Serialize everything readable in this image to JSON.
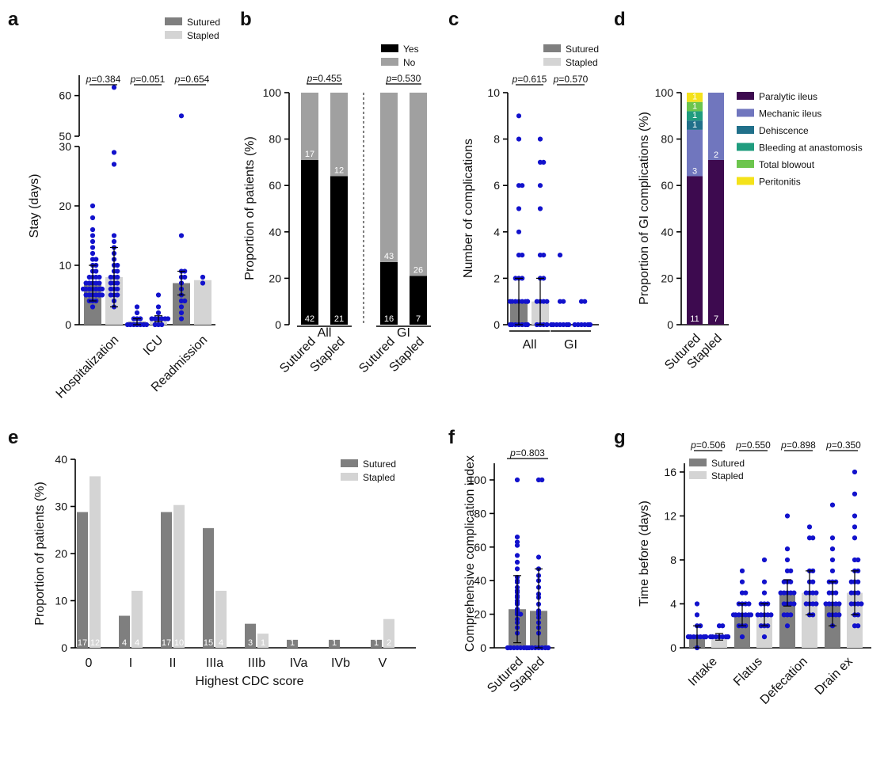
{
  "colors": {
    "sutured": "#7f7f7f",
    "stapled": "#d4d4d4",
    "points": "#1212cc",
    "yes": "#000000",
    "no": "#a0a0a0",
    "paralytic_ileus": "#3d0a4f",
    "mechanic_ileus": "#7076be",
    "dehiscence": "#21708a",
    "bleeding_at_anastomosis": "#1f9c7e",
    "total_blowout": "#6cc54d",
    "peritonitis": "#f4e21a"
  },
  "chart_data": [
    {
      "panel": "a",
      "type": "bar",
      "ylabel": "Stay (days)",
      "yticks_lower": [
        "0",
        "10",
        "20",
        "30"
      ],
      "yticks_upper": [
        "50",
        "60"
      ],
      "ylim_lower": [
        0,
        30
      ],
      "ylim_upper": [
        50,
        65
      ],
      "legend": [
        "Sutured",
        "Stapled"
      ],
      "groups": [
        {
          "name": "Hospitalization",
          "p": "0.384",
          "bars": [
            {
              "series": "Sutured",
              "value": 7,
              "sd": 3,
              "points": [
                3,
                4,
                4,
                4,
                5,
                5,
                5,
                5,
                5,
                5,
                6,
                6,
                6,
                6,
                6,
                6,
                6,
                7,
                7,
                7,
                7,
                7,
                8,
                8,
                8,
                8,
                9,
                9,
                10,
                10,
                11,
                11,
                12,
                13,
                14,
                15,
                16,
                18,
                20
              ]
            },
            {
              "series": "Stapled",
              "value": 8,
              "sd": 5,
              "points": [
                3,
                4,
                5,
                5,
                5,
                6,
                6,
                6,
                7,
                7,
                7,
                8,
                8,
                8,
                9,
                9,
                10,
                10,
                11,
                12,
                13,
                14,
                15,
                27,
                29,
                62
              ]
            }
          ]
        },
        {
          "name": "ICU",
          "p": "0.051",
          "bars": [
            {
              "series": "Sutured",
              "value": 0.5,
              "sd": 0.5,
              "points": [
                0,
                0,
                0,
                0,
                0,
                0,
                0,
                1,
                1,
                1,
                2,
                3
              ]
            },
            {
              "series": "Stapled",
              "value": 1,
              "sd": 0.5,
              "points": [
                0,
                0,
                0,
                1,
                1,
                1,
                1,
                1,
                1,
                2,
                3,
                5
              ]
            }
          ]
        },
        {
          "name": "Readmission",
          "p": "0.654",
          "bars": [
            {
              "series": "Sutured",
              "value": 7,
              "sd": 2,
              "points": [
                1,
                2,
                3,
                4,
                4,
                5,
                6,
                7,
                8,
                8,
                9,
                9,
                15,
                55
              ]
            },
            {
              "series": "Stapled",
              "value": 7.5,
              "sd": 0,
              "points": [
                7,
                8
              ]
            }
          ]
        }
      ]
    },
    {
      "panel": "b",
      "type": "bar",
      "stacked": true,
      "ylabel": "Proportion of patients (%)",
      "yticks": [
        "0",
        "20",
        "40",
        "60",
        "80",
        "100"
      ],
      "ylim": [
        0,
        100
      ],
      "legend": [
        "Yes",
        "No"
      ],
      "groups": [
        {
          "name": "All",
          "p": "0.455",
          "bars": [
            {
              "label": "Sutured",
              "yes": 71,
              "no": 29,
              "yes_count": "42",
              "no_count": "17"
            },
            {
              "label": "Stapled",
              "yes": 64,
              "no": 36,
              "yes_count": "21",
              "no_count": "12"
            }
          ]
        },
        {
          "name": "GI",
          "p": "0.530",
          "bars": [
            {
              "label": "Sutured",
              "yes": 27,
              "no": 73,
              "yes_count": "16",
              "no_count": "43"
            },
            {
              "label": "Stapled",
              "yes": 21,
              "no": 79,
              "yes_count": "7",
              "no_count": "26"
            }
          ]
        }
      ]
    },
    {
      "panel": "c",
      "type": "bar",
      "ylabel": "Number of complications",
      "yticks": [
        "0",
        "2",
        "4",
        "6",
        "8",
        "10"
      ],
      "ylim": [
        0,
        10
      ],
      "legend": [
        "Sutured",
        "Stapled"
      ],
      "groups": [
        {
          "name": "All",
          "p": "0.615",
          "bars": [
            {
              "series": "Sutured",
              "value": 1,
              "sd": 1,
              "points": [
                0,
                0,
                0,
                0,
                0,
                0,
                0,
                1,
                1,
                1,
                1,
                1,
                1,
                1,
                1,
                2,
                2,
                2,
                3,
                3,
                4,
                5,
                6,
                6,
                8,
                9
              ]
            },
            {
              "series": "Stapled",
              "value": 1,
              "sd": 1,
              "points": [
                0,
                0,
                0,
                0,
                1,
                1,
                1,
                1,
                2,
                2,
                3,
                3,
                5,
                6,
                7,
                7,
                8
              ]
            }
          ]
        },
        {
          "name": "GI",
          "p": "0.570",
          "bars": [
            {
              "series": "Sutured",
              "value": 0,
              "sd": 0,
              "points": [
                0,
                0,
                0,
                0,
                0,
                0,
                0,
                1,
                1,
                3
              ]
            },
            {
              "series": "Stapled",
              "value": 0,
              "sd": 0,
              "points": [
                0,
                0,
                0,
                0,
                0,
                0,
                1,
                1
              ]
            }
          ]
        }
      ]
    },
    {
      "panel": "d",
      "type": "bar",
      "stacked": true,
      "ylabel": "Proportion of GI complications (%)",
      "yticks": [
        "0",
        "20",
        "40",
        "60",
        "80",
        "100"
      ],
      "ylim": [
        0,
        100
      ],
      "categories": [
        "Sutured",
        "Stapled"
      ],
      "legend": [
        "Paralytic ileus",
        "Mechanic ileus",
        "Dehiscence",
        "Bleeding at anastomosis",
        "Total blowout",
        "Peritonitis"
      ],
      "series": [
        {
          "name": "Paralytic ileus",
          "values": [
            64,
            71
          ],
          "counts": [
            "11",
            "7"
          ]
        },
        {
          "name": "Mechanic ileus",
          "values": [
            20,
            29
          ],
          "counts": [
            "3",
            "2"
          ]
        },
        {
          "name": "Dehiscence",
          "values": [
            4,
            0
          ],
          "counts": [
            "1",
            ""
          ]
        },
        {
          "name": "Bleeding at anastomosis",
          "values": [
            4,
            0
          ],
          "counts": [
            "1",
            ""
          ]
        },
        {
          "name": "Total blowout",
          "values": [
            4,
            0
          ],
          "counts": [
            "1",
            ""
          ]
        },
        {
          "name": "Peritonitis",
          "values": [
            4,
            0
          ],
          "counts": [
            "1",
            ""
          ]
        }
      ]
    },
    {
      "panel": "e",
      "type": "bar",
      "xlabel": "Highest CDC score",
      "ylabel": "Proportion of patients (%)",
      "yticks": [
        "0",
        "10",
        "20",
        "30",
        "40"
      ],
      "ylim": [
        0,
        40
      ],
      "categories": [
        "0",
        "I",
        "II",
        "IIIa",
        "IIIb",
        "IVa",
        "IVb",
        "V"
      ],
      "series": [
        {
          "name": "Sutured",
          "values": [
            28.8,
            6.8,
            28.8,
            25.4,
            5.1,
            1.7,
            1.7,
            1.7
          ],
          "counts": [
            "17",
            "4",
            "17",
            "15",
            "3",
            "1",
            "1",
            "1"
          ]
        },
        {
          "name": "Stapled",
          "values": [
            36.4,
            12.1,
            30.3,
            12.1,
            3.0,
            0,
            0,
            6.1
          ],
          "counts": [
            "12",
            "4",
            "10",
            "4",
            "1",
            "",
            "",
            "2"
          ]
        }
      ]
    },
    {
      "panel": "f",
      "type": "bar",
      "ylabel": "Comprehensive complication index",
      "yticks": [
        "0",
        "20",
        "40",
        "60",
        "80",
        "100"
      ],
      "ylim": [
        0,
        100
      ],
      "p": "0.803",
      "bars": [
        {
          "label": "Sutured",
          "value": 23,
          "sd": 20,
          "points": [
            0,
            0,
            0,
            0,
            0,
            0,
            0,
            0,
            0,
            0,
            8.7,
            12,
            15,
            17,
            20,
            20,
            21,
            22,
            23,
            26,
            27,
            28,
            30,
            31,
            33,
            34,
            36,
            39,
            40,
            42,
            47,
            51,
            55,
            61,
            63,
            66,
            100
          ]
        },
        {
          "label": "Stapled",
          "value": 22,
          "sd": 25,
          "points": [
            0,
            0,
            0,
            0,
            0,
            0,
            0,
            0,
            8.7,
            12,
            15,
            18,
            20,
            21,
            22,
            26,
            30,
            32,
            36,
            40,
            43,
            47,
            54,
            100,
            100
          ]
        }
      ]
    },
    {
      "panel": "g",
      "type": "bar",
      "ylabel": "Time before (days)",
      "yticks": [
        "0",
        "4",
        "8",
        "12",
        "16"
      ],
      "ylim": [
        0,
        16.5
      ],
      "legend": [
        "Sutured",
        "Stapled"
      ],
      "groups": [
        {
          "name": "Intake",
          "p": "0.506",
          "bars": [
            {
              "series": "Sutured",
              "value": 1,
              "sd": 1,
              "points": [
                0,
                1,
                1,
                1,
                1,
                1,
                1,
                1,
                1,
                1,
                1,
                2,
                2,
                3,
                4
              ]
            },
            {
              "series": "Stapled",
              "value": 1,
              "sd": 0.3,
              "points": [
                1,
                1,
                1,
                1,
                1,
                1,
                1,
                1,
                2,
                2
              ]
            }
          ]
        },
        {
          "name": "Flatus",
          "p": "0.550",
          "bars": [
            {
              "series": "Sutured",
              "value": 3,
              "sd": 1,
              "points": [
                1,
                2,
                2,
                2,
                3,
                3,
                3,
                3,
                3,
                3,
                3,
                4,
                4,
                4,
                4,
                5,
                5,
                6,
                7
              ]
            },
            {
              "series": "Stapled",
              "value": 3,
              "sd": 1,
              "points": [
                1,
                2,
                2,
                2,
                3,
                3,
                3,
                3,
                3,
                4,
                4,
                4,
                5,
                6,
                8
              ]
            }
          ]
        },
        {
          "name": "Defecation",
          "p": "0.898",
          "bars": [
            {
              "series": "Sutured",
              "value": 5,
              "sd": 1.2,
              "points": [
                2,
                3,
                3,
                3,
                4,
                4,
                4,
                4,
                5,
                5,
                5,
                5,
                5,
                6,
                6,
                6,
                7,
                7,
                8,
                9,
                12
              ]
            },
            {
              "series": "Stapled",
              "value": 5,
              "sd": 2,
              "points": [
                3,
                3,
                4,
                4,
                4,
                4,
                5,
                5,
                5,
                5,
                6,
                6,
                7,
                7,
                10,
                10,
                11
              ]
            }
          ]
        },
        {
          "name": "Drain ex",
          "p": "0.350",
          "bars": [
            {
              "series": "Sutured",
              "value": 4,
              "sd": 2,
              "points": [
                2,
                3,
                3,
                3,
                3,
                4,
                4,
                4,
                4,
                4,
                5,
                5,
                5,
                6,
                6,
                6,
                7,
                8,
                9,
                10,
                13
              ]
            },
            {
              "series": "Stapled",
              "value": 5,
              "sd": 2,
              "points": [
                2,
                2,
                3,
                3,
                4,
                4,
                4,
                4,
                5,
                5,
                5,
                6,
                6,
                6,
                7,
                7,
                8,
                8,
                10,
                11,
                12,
                14,
                16
              ]
            }
          ]
        }
      ]
    }
  ]
}
